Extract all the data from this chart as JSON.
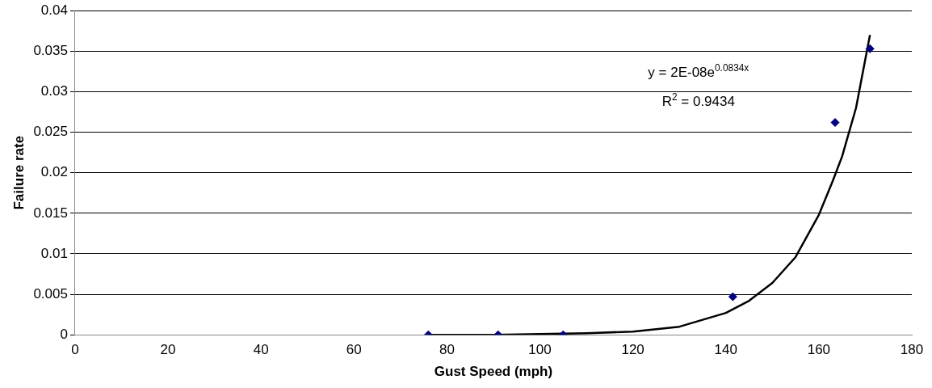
{
  "chart_data": {
    "type": "scatter",
    "xlabel": "Gust Speed (mph)",
    "ylabel": "Failure rate",
    "xlim": [
      0,
      180
    ],
    "xticks": [
      0,
      20,
      40,
      60,
      80,
      100,
      120,
      140,
      160,
      180
    ],
    "ylim": [
      0,
      0.04
    ],
    "yticks": [
      0,
      0.005,
      0.01,
      0.015,
      0.02,
      0.025,
      0.03,
      0.035,
      0.04
    ],
    "grid": "y",
    "legend": false,
    "marker": "diamond",
    "annotations": [
      "y = 2E-08e$^{0.0834x}$",
      "R$^{2}$ = 0.9434"
    ],
    "series": [
      {
        "type": "scatter",
        "color": "#000080",
        "x": [
          76,
          91,
          105,
          141.5,
          163.5,
          171
        ],
        "values": [
          0,
          0,
          0,
          0.0047,
          0.0262,
          0.0353
        ]
      },
      {
        "type": "line",
        "color": "#000000",
        "marker": "none",
        "line_style": "solid",
        "x": [
          76,
          90,
          100,
          110,
          120,
          130,
          140,
          145,
          150,
          155,
          160,
          163,
          165,
          168,
          170,
          171
        ],
        "values": [
          0,
          0,
          0.0001,
          0.0002,
          0.0004,
          0.001,
          0.0027,
          0.0042,
          0.0064,
          0.0096,
          0.0148,
          0.019,
          0.022,
          0.028,
          0.034,
          0.037
        ]
      }
    ]
  }
}
